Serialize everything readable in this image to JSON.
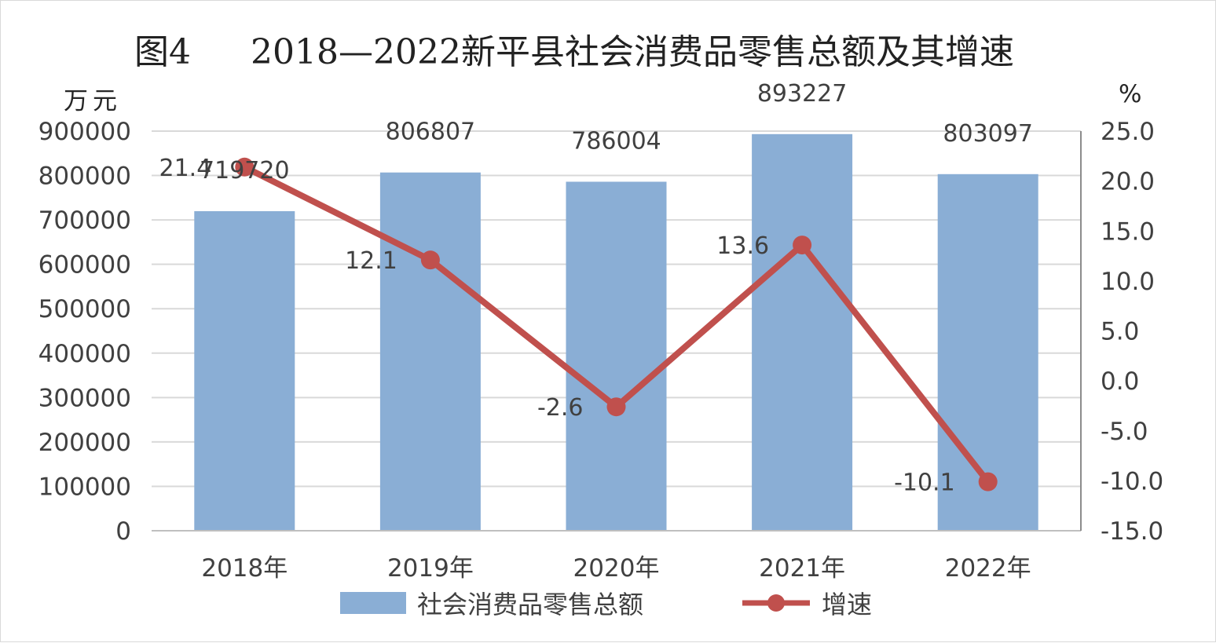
{
  "title_prefix": "图4",
  "title_main": "2018—2022新平县社会消费品零售总额及其增速",
  "left_unit": "万元",
  "right_unit": "%",
  "colors": {
    "bar": "#8aaed5",
    "line": "#c0504d",
    "grid": "#d9d9d9",
    "axis": "#bfbfbf"
  },
  "chart_data": {
    "type": "bar",
    "title": "图4 2018—2022新平县社会消费品零售总额及其增速",
    "categories": [
      "2018年",
      "2019年",
      "2020年",
      "2021年",
      "2022年"
    ],
    "series": [
      {
        "name": "社会消费品零售总额",
        "type": "bar",
        "axis": "left",
        "values": [
          719720,
          806807,
          786004,
          893227,
          803097
        ],
        "value_labels": [
          "719720",
          "806807",
          "786004",
          "893227",
          "803097"
        ]
      },
      {
        "name": "增速",
        "type": "line",
        "axis": "right",
        "values": [
          21.4,
          12.1,
          -2.6,
          13.6,
          -10.1
        ],
        "value_labels": [
          "21.4",
          "12.1",
          "-2.6",
          "13.6",
          "-10.1"
        ]
      }
    ],
    "left_axis": {
      "label": "万元",
      "range": [
        0,
        900000
      ],
      "ticks": [
        "0",
        "100000",
        "200000",
        "300000",
        "400000",
        "500000",
        "600000",
        "700000",
        "800000",
        "900000"
      ]
    },
    "right_axis": {
      "label": "%",
      "range": [
        -15,
        25
      ],
      "ticks": [
        "-15.0",
        "-10.0",
        "-5.0",
        "0.0",
        "5.0",
        "10.0",
        "15.0",
        "20.0",
        "25.0"
      ]
    },
    "grid": true,
    "legend_position": "bottom"
  }
}
